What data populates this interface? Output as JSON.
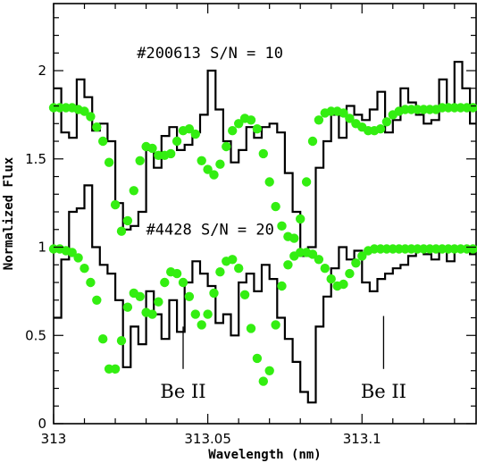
{
  "chart_data": {
    "type": "line",
    "xlabel": "Wavelength (nm)",
    "ylabel": "Normalized Flux",
    "xlim": [
      313.0,
      313.137
    ],
    "ylim": [
      0,
      2.38
    ],
    "x_ticks": [
      {
        "value": 313.0,
        "label": "313"
      },
      {
        "value": 313.05,
        "label": "313.05"
      },
      {
        "value": 313.1,
        "label": "313.1"
      }
    ],
    "y_ticks": [
      {
        "value": 0,
        "label": "0"
      },
      {
        "value": 0.5,
        "label": "0.5"
      },
      {
        "value": 1,
        "label": "1"
      },
      {
        "value": 1.5,
        "label": "1.5"
      },
      {
        "value": 2,
        "label": "2"
      }
    ],
    "annotations": [
      {
        "text": "#200613 S/N = 10",
        "x": 313.027,
        "y": 2.07
      },
      {
        "text": "#4428 S/N = 20",
        "x": 313.03,
        "y": 1.07
      }
    ],
    "line_markers": [
      {
        "label": "Be II",
        "x": 313.042,
        "y_top": 0.55,
        "y_bottom": 0.31
      },
      {
        "label": "Be II",
        "x": 313.107,
        "y_top": 0.61,
        "y_bottom": 0.31
      }
    ],
    "colors": {
      "observed": "#000000",
      "model": "#33ee11"
    },
    "series": [
      {
        "kind": "observed-step",
        "x": [
          313.0,
          313.0025,
          313.005,
          313.0075,
          313.01,
          313.0125,
          313.015,
          313.0175,
          313.02,
          313.0225,
          313.025,
          313.0275,
          313.03,
          313.0325,
          313.035,
          313.0375,
          313.04,
          313.0425,
          313.045,
          313.0475,
          313.05,
          313.0525,
          313.055,
          313.0575,
          313.06,
          313.0625,
          313.065,
          313.0675,
          313.07,
          313.0725,
          313.075,
          313.0775,
          313.08,
          313.0825,
          313.085,
          313.0875,
          313.09,
          313.0925,
          313.095,
          313.0975,
          313.1,
          313.1025,
          313.105,
          313.1075,
          313.11,
          313.1125,
          313.115,
          313.1175,
          313.12,
          313.1225,
          313.125,
          313.1275,
          313.13,
          313.1325,
          313.135
        ],
        "y": [
          1.9,
          1.65,
          1.62,
          1.95,
          1.85,
          1.66,
          1.7,
          1.6,
          1.25,
          1.1,
          1.12,
          1.2,
          1.55,
          1.45,
          1.63,
          1.68,
          1.55,
          1.58,
          1.65,
          1.75,
          2.0,
          1.78,
          1.6,
          1.48,
          1.55,
          1.68,
          1.62,
          1.68,
          1.7,
          1.65,
          1.42,
          1.2,
          0.95,
          1.0,
          1.45,
          1.6,
          1.75,
          1.62,
          1.8,
          1.75,
          1.72,
          1.78,
          1.88,
          1.65,
          1.72,
          1.9,
          1.82,
          1.75,
          1.7,
          1.72,
          1.95,
          1.8,
          2.05,
          1.9,
          1.7
        ]
      },
      {
        "kind": "model-points",
        "x": [
          313.0,
          313.002,
          313.004,
          313.006,
          313.008,
          313.01,
          313.012,
          313.014,
          313.016,
          313.018,
          313.02,
          313.022,
          313.024,
          313.026,
          313.028,
          313.03,
          313.032,
          313.034,
          313.036,
          313.038,
          313.04,
          313.042,
          313.044,
          313.046,
          313.048,
          313.05,
          313.052,
          313.054,
          313.056,
          313.058,
          313.06,
          313.062,
          313.064,
          313.066,
          313.068,
          313.07,
          313.072,
          313.074,
          313.076,
          313.078,
          313.08,
          313.082,
          313.084,
          313.086,
          313.088,
          313.09,
          313.092,
          313.094,
          313.096,
          313.098,
          313.1,
          313.102,
          313.104,
          313.106,
          313.108,
          313.11,
          313.112,
          313.114,
          313.116,
          313.118,
          313.12,
          313.122,
          313.124,
          313.126,
          313.128,
          313.13,
          313.132,
          313.134,
          313.136
        ],
        "y": [
          1.79,
          1.79,
          1.79,
          1.79,
          1.78,
          1.77,
          1.74,
          1.68,
          1.6,
          1.48,
          1.24,
          1.09,
          1.15,
          1.32,
          1.49,
          1.57,
          1.56,
          1.52,
          1.52,
          1.53,
          1.6,
          1.66,
          1.67,
          1.64,
          1.49,
          1.44,
          1.41,
          1.47,
          1.57,
          1.66,
          1.7,
          1.73,
          1.72,
          1.67,
          1.53,
          1.37,
          1.23,
          1.12,
          1.06,
          1.05,
          1.16,
          1.37,
          1.6,
          1.72,
          1.76,
          1.77,
          1.77,
          1.76,
          1.73,
          1.7,
          1.68,
          1.66,
          1.66,
          1.67,
          1.71,
          1.75,
          1.77,
          1.78,
          1.78,
          1.78,
          1.78,
          1.78,
          1.78,
          1.79,
          1.79,
          1.79,
          1.79,
          1.79,
          1.79
        ]
      },
      {
        "kind": "observed-step",
        "x": [
          313.0,
          313.0025,
          313.005,
          313.0075,
          313.01,
          313.0125,
          313.015,
          313.0175,
          313.02,
          313.0225,
          313.025,
          313.0275,
          313.03,
          313.0325,
          313.035,
          313.0375,
          313.04,
          313.0425,
          313.045,
          313.0475,
          313.05,
          313.0525,
          313.055,
          313.0575,
          313.06,
          313.0625,
          313.065,
          313.0675,
          313.07,
          313.0725,
          313.075,
          313.0775,
          313.08,
          313.0825,
          313.085,
          313.0875,
          313.09,
          313.0925,
          313.095,
          313.0975,
          313.1,
          313.1025,
          313.105,
          313.1075,
          313.11,
          313.1125,
          313.115,
          313.1175,
          313.12,
          313.1225,
          313.125,
          313.1275,
          313.13,
          313.1325,
          313.135
        ],
        "y": [
          0.6,
          0.93,
          1.2,
          1.22,
          1.35,
          1.0,
          0.9,
          0.85,
          0.7,
          0.32,
          0.55,
          0.45,
          0.75,
          0.62,
          0.48,
          0.7,
          0.52,
          0.8,
          0.92,
          0.85,
          0.78,
          0.57,
          0.62,
          0.5,
          0.8,
          0.85,
          0.75,
          0.9,
          0.82,
          0.6,
          0.48,
          0.35,
          0.18,
          0.12,
          0.55,
          0.72,
          0.88,
          1.0,
          0.93,
          0.98,
          0.8,
          0.75,
          0.82,
          0.85,
          0.88,
          0.9,
          0.95,
          0.98,
          0.96,
          0.93,
          1.0,
          0.92,
          0.98,
          1.0,
          0.96
        ]
      },
      {
        "kind": "model-points",
        "x": [
          313.0,
          313.002,
          313.004,
          313.006,
          313.008,
          313.01,
          313.012,
          313.014,
          313.016,
          313.018,
          313.02,
          313.022,
          313.024,
          313.026,
          313.028,
          313.03,
          313.032,
          313.034,
          313.036,
          313.038,
          313.04,
          313.042,
          313.044,
          313.046,
          313.048,
          313.05,
          313.052,
          313.054,
          313.056,
          313.058,
          313.06,
          313.062,
          313.064,
          313.066,
          313.068,
          313.07,
          313.072,
          313.074,
          313.076,
          313.078,
          313.08,
          313.082,
          313.084,
          313.086,
          313.088,
          313.09,
          313.092,
          313.094,
          313.096,
          313.098,
          313.1,
          313.102,
          313.104,
          313.106,
          313.108,
          313.11,
          313.112,
          313.114,
          313.116,
          313.118,
          313.12,
          313.122,
          313.124,
          313.126,
          313.128,
          313.13,
          313.132,
          313.134,
          313.136
        ],
        "y": [
          0.99,
          0.99,
          0.98,
          0.97,
          0.94,
          0.88,
          0.8,
          0.7,
          0.48,
          0.31,
          0.31,
          0.47,
          0.66,
          0.74,
          0.72,
          0.63,
          0.62,
          0.69,
          0.8,
          0.86,
          0.85,
          0.8,
          0.72,
          0.62,
          0.56,
          0.62,
          0.74,
          0.86,
          0.92,
          0.93,
          0.88,
          0.73,
          0.54,
          0.37,
          0.24,
          0.3,
          0.56,
          0.78,
          0.9,
          0.95,
          0.97,
          0.97,
          0.96,
          0.93,
          0.88,
          0.82,
          0.78,
          0.79,
          0.85,
          0.91,
          0.95,
          0.98,
          0.99,
          0.99,
          0.99,
          0.99,
          0.99,
          0.99,
          0.99,
          0.99,
          0.99,
          0.99,
          0.99,
          0.99,
          0.99,
          0.99,
          0.99,
          0.99,
          0.99
        ]
      }
    ]
  }
}
